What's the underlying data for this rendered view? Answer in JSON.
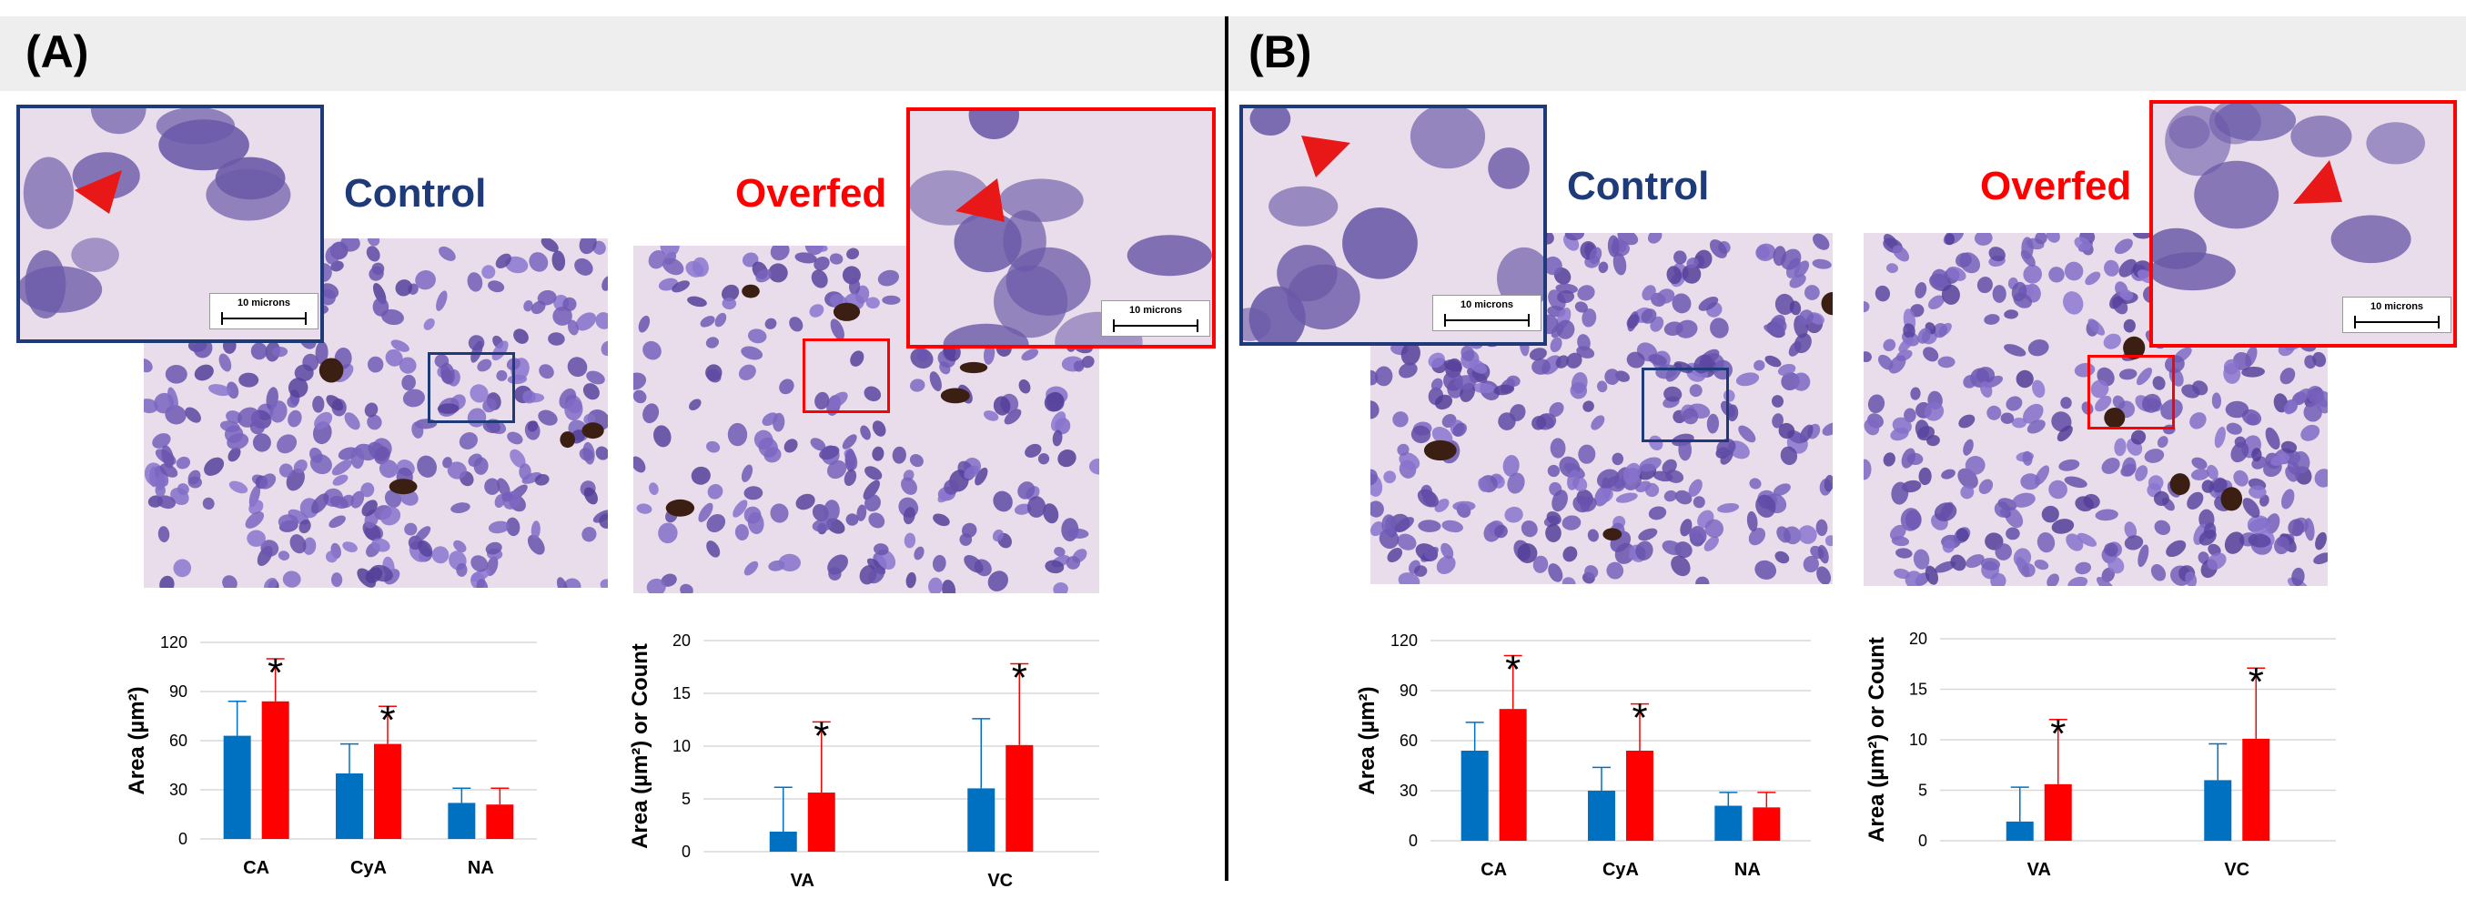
{
  "panels": [
    {
      "label": "(A)",
      "control_label": "Control",
      "overfed_label": "Overfed",
      "scale_label_control": "10 microns",
      "scale_label_overfed": "10 microns"
    },
    {
      "label": "(B)",
      "control_label": "Control",
      "overfed_label": "Overfed",
      "scale_label_control": "10 microns",
      "scale_label_overfed": "10 microns"
    }
  ],
  "colors": {
    "control": "#0070C0",
    "overfed": "#FF0000",
    "control_label": "#1F3A78",
    "overfed_label": "#FF0000",
    "stain_bg": "#E9DDEB",
    "nucleus": "#6B5AA8",
    "pigment": "#3A1F12"
  },
  "chart_data": [
    {
      "type": "bar",
      "panel": "A",
      "categories": [
        "CA",
        "CyA",
        "NA"
      ],
      "ylabel": "Area (µm²)",
      "ylim": [
        0,
        120
      ],
      "yticks": [
        0,
        30,
        60,
        90,
        120
      ],
      "series": [
        {
          "values": [
            63,
            40,
            22
          ],
          "errors": [
            21,
            18,
            9
          ]
        },
        {
          "values": [
            84,
            58,
            21
          ],
          "errors": [
            26,
            23,
            10
          ]
        }
      ],
      "significant": [
        true,
        true,
        false
      ]
    },
    {
      "type": "bar",
      "panel": "A",
      "categories": [
        "VA",
        "VC"
      ],
      "ylabel": "Area (µm²) or Count",
      "ylim": [
        0,
        20
      ],
      "yticks": [
        0,
        5,
        10,
        15,
        20
      ],
      "series": [
        {
          "values": [
            1.9,
            6.0
          ],
          "errors": [
            4.2,
            6.6
          ]
        },
        {
          "values": [
            5.6,
            10.1
          ],
          "errors": [
            6.7,
            7.7
          ]
        }
      ],
      "significant": [
        true,
        true
      ]
    },
    {
      "type": "bar",
      "panel": "B",
      "categories": [
        "CA",
        "CyA",
        "NA"
      ],
      "ylabel": "Area (µm²)",
      "ylim": [
        0,
        120
      ],
      "yticks": [
        0,
        30,
        60,
        90,
        120
      ],
      "series": [
        {
          "values": [
            54,
            30,
            21
          ],
          "errors": [
            17,
            14,
            8
          ]
        },
        {
          "values": [
            79,
            54,
            20
          ],
          "errors": [
            32,
            28,
            9
          ]
        }
      ],
      "significant": [
        true,
        true,
        false
      ]
    },
    {
      "type": "bar",
      "panel": "B",
      "categories": [
        "VA",
        "VC"
      ],
      "ylabel": "Area (µm²) or Count",
      "ylim": [
        0,
        20
      ],
      "yticks": [
        0,
        5,
        10,
        15,
        20
      ],
      "series": [
        {
          "values": [
            1.9,
            6.0
          ],
          "errors": [
            3.4,
            3.6
          ]
        },
        {
          "values": [
            5.6,
            10.1
          ],
          "errors": [
            6.4,
            7.0
          ]
        }
      ],
      "significant": [
        true,
        true
      ]
    }
  ]
}
